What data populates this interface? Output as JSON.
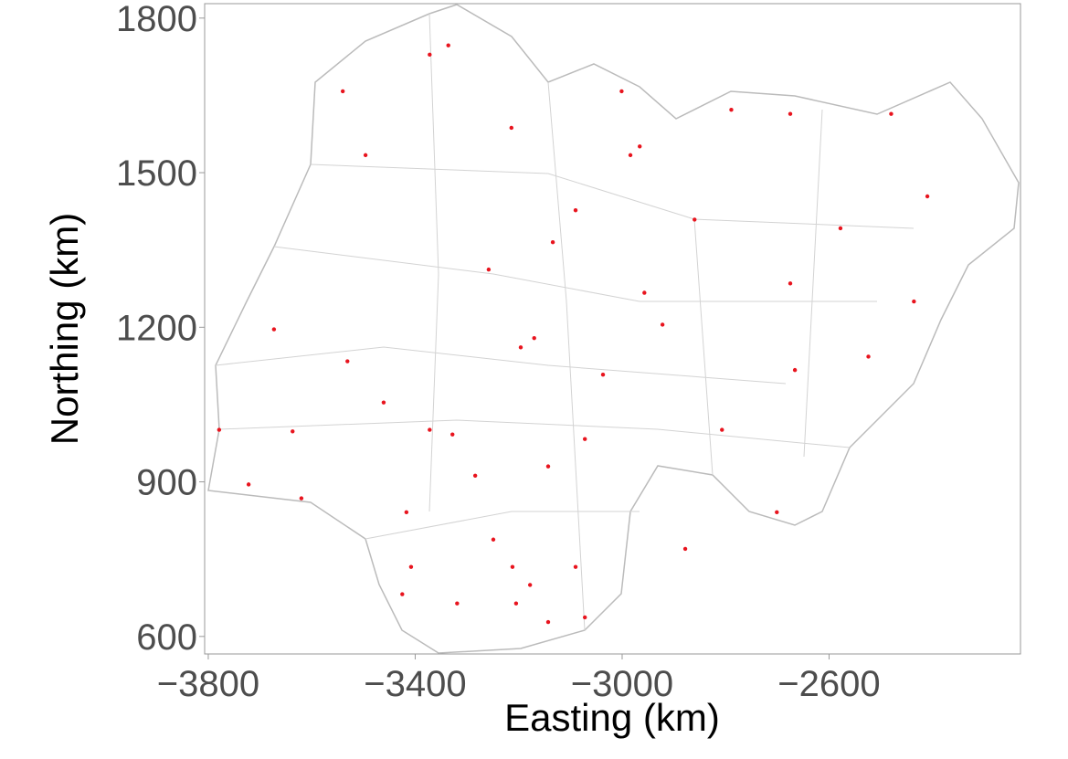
{
  "chart_data": {
    "type": "scatter",
    "xlabel": "Easting (km)",
    "ylabel": "Northing (km)",
    "color": "#e8141e",
    "xlim": [
      -3807,
      -2230
    ],
    "ylim": [
      566,
      1828
    ],
    "xticks": [
      {
        "value": -3800,
        "label": "−3800"
      },
      {
        "value": -3400,
        "label": "−3400"
      },
      {
        "value": -3000,
        "label": "−3000"
      },
      {
        "value": -2600,
        "label": "−2600"
      }
    ],
    "yticks": [
      600,
      900,
      1200,
      1500,
      1800
    ],
    "x": [
      -3722,
      -3637,
      -3531,
      -3461,
      -3372,
      -3328,
      -3249,
      -3212,
      -3178,
      -3205,
      -3143,
      -3408,
      -3417,
      -2984,
      -2966,
      -3134,
      -3170,
      -3196,
      -2957,
      -3037,
      -2410,
      -2675,
      -2666,
      -3372,
      -3336,
      -2789,
      -2675,
      -2480,
      -3540,
      -3258,
      -2922,
      -3072,
      -2878,
      -2701,
      -2524,
      -2436,
      -3673,
      -3779,
      -3620,
      -3284,
      -3143,
      -3090,
      -3072,
      -3319,
      -3425,
      -2860,
      -3090,
      -3001,
      -3214,
      -3496,
      -2807,
      -2578
    ],
    "values": [
      895,
      998,
      1134,
      1054,
      1001,
      992,
      788,
      735,
      700,
      664,
      628,
      735,
      841,
      1534,
      1551,
      1365,
      1179,
      1161,
      1267,
      1108,
      1454,
      1285,
      1117,
      1729,
      1747,
      1622,
      1614,
      1614,
      1658,
      1312,
      1205,
      983,
      770,
      841,
      1143,
      1250,
      1196,
      1001,
      868,
      912,
      930,
      735,
      637,
      664,
      682,
      1409,
      1427,
      1658,
      1587,
      1534,
      1001,
      1392
    ]
  }
}
